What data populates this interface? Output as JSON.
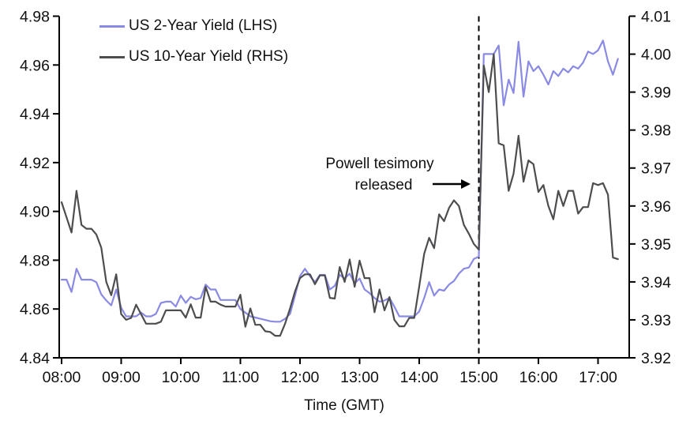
{
  "accent_colors": {
    "series_2y": "#8a8ae4",
    "series_10y": "#4d4d50",
    "axis": "#000000"
  },
  "legend": {
    "items": [
      {
        "label": "US 2-Year Yield (LHS)",
        "color": "#8a8ae4"
      },
      {
        "label": "US 10-Year Yield (RHS)",
        "color": "#4d4d50"
      }
    ]
  },
  "annotation": {
    "line1": "Powell tesimony",
    "line2": "released",
    "arrow_icon": "right-arrow"
  },
  "chart_data": {
    "type": "line",
    "title": "",
    "xlabel": "Time (GMT)",
    "x_start": "08:00",
    "x_end": "17:20",
    "x_step_minutes": 5,
    "x_tick_labels": [
      "08:00",
      "09:00",
      "10:00",
      "11:00",
      "12:00",
      "13:00",
      "14:00",
      "15:00",
      "16:00",
      "17:00"
    ],
    "left_axis": {
      "min": 4.84,
      "max": 4.98,
      "tick_labels": [
        "4.98",
        "4.96",
        "4.94",
        "4.92",
        "4.90",
        "4.88",
        "4.86",
        "4.84"
      ]
    },
    "right_axis": {
      "min": 3.92,
      "max": 4.01,
      "tick_labels": [
        "4.01",
        "4.00",
        "3.99",
        "3.98",
        "3.97",
        "3.96",
        "3.95",
        "3.94",
        "3.93",
        "3.92"
      ]
    },
    "event_line": {
      "x": "15:00",
      "style": "dashed",
      "color": "#000000"
    },
    "grid": false,
    "legend_position": "top-left",
    "series": [
      {
        "name": "US 2-Year Yield (LHS)",
        "axis": "left",
        "color": "#8a8ae4",
        "values": [
          4.872,
          4.872,
          4.867,
          4.8765,
          4.872,
          4.872,
          4.872,
          4.871,
          4.866,
          4.8635,
          4.8615,
          4.868,
          4.8605,
          4.857,
          4.857,
          4.857,
          4.8585,
          4.857,
          4.857,
          4.858,
          4.8625,
          4.863,
          4.863,
          4.861,
          4.8655,
          4.8625,
          4.865,
          4.864,
          4.8645,
          4.87,
          4.868,
          4.868,
          4.8637,
          4.8637,
          4.8637,
          4.8637,
          4.86,
          4.8585,
          4.857,
          4.8565,
          4.856,
          4.8555,
          4.855,
          4.8548,
          4.8548,
          4.856,
          4.858,
          4.8655,
          4.8735,
          4.8765,
          4.8735,
          4.871,
          4.874,
          4.874,
          4.868,
          4.8695,
          4.874,
          4.8725,
          4.8745,
          4.8705,
          4.8725,
          4.868,
          4.8665,
          4.8645,
          4.863,
          4.8635,
          4.8645,
          4.861,
          4.857,
          4.857,
          4.857,
          4.857,
          4.859,
          4.8645,
          4.871,
          4.8655,
          4.868,
          4.8675,
          4.87,
          4.8715,
          4.8745,
          4.8765,
          4.877,
          4.8805,
          4.8815,
          4.9645,
          4.9645,
          4.9645,
          4.968,
          4.9435,
          4.954,
          4.9485,
          4.9695,
          4.947,
          4.9615,
          4.9575,
          4.9595,
          4.956,
          4.952,
          4.9575,
          4.9555,
          4.9585,
          4.957,
          4.9595,
          4.9585,
          4.961,
          4.9655,
          4.9645,
          4.966,
          4.97,
          4.9615,
          4.956,
          4.9625
        ]
      },
      {
        "name": "US 10-Year Yield (RHS)",
        "axis": "right",
        "color": "#4d4d50",
        "values": [
          3.961,
          3.957,
          3.953,
          3.964,
          3.955,
          3.954,
          3.954,
          3.9525,
          3.949,
          3.94,
          3.9365,
          3.942,
          3.9315,
          3.93,
          3.9305,
          3.934,
          3.9315,
          3.929,
          3.929,
          3.929,
          3.9295,
          3.9325,
          3.9325,
          3.9325,
          3.9325,
          3.9306,
          3.9341,
          3.9306,
          3.9306,
          3.9387,
          3.9348,
          3.9348,
          3.934,
          3.9335,
          3.9335,
          3.9335,
          3.9366,
          3.9282,
          3.933,
          3.9287,
          3.9287,
          3.927,
          3.9268,
          3.9258,
          3.9258,
          3.929,
          3.933,
          3.9375,
          3.941,
          3.942,
          3.942,
          3.9394,
          3.9417,
          3.9417,
          3.9358,
          3.9356,
          3.9439,
          3.94,
          3.9459,
          3.9387,
          3.9456,
          3.941,
          3.941,
          3.932,
          3.938,
          3.9325,
          3.936,
          3.93,
          3.9283,
          3.9283,
          3.9305,
          3.9305,
          3.9388,
          3.9474,
          3.9516,
          3.9489,
          3.9578,
          3.956,
          3.9595,
          3.9615,
          3.96,
          3.955,
          3.9527,
          3.95,
          3.9485,
          3.997,
          3.99,
          4.0,
          3.9765,
          3.976,
          3.964,
          3.9685,
          3.9785,
          3.9664,
          3.972,
          3.971,
          3.9637,
          3.9655,
          3.96,
          3.9565,
          3.964,
          3.96,
          3.964,
          3.964,
          3.958,
          3.9597,
          3.9597,
          3.966,
          3.9655,
          3.966,
          3.963,
          3.9464,
          3.946
        ]
      }
    ]
  }
}
